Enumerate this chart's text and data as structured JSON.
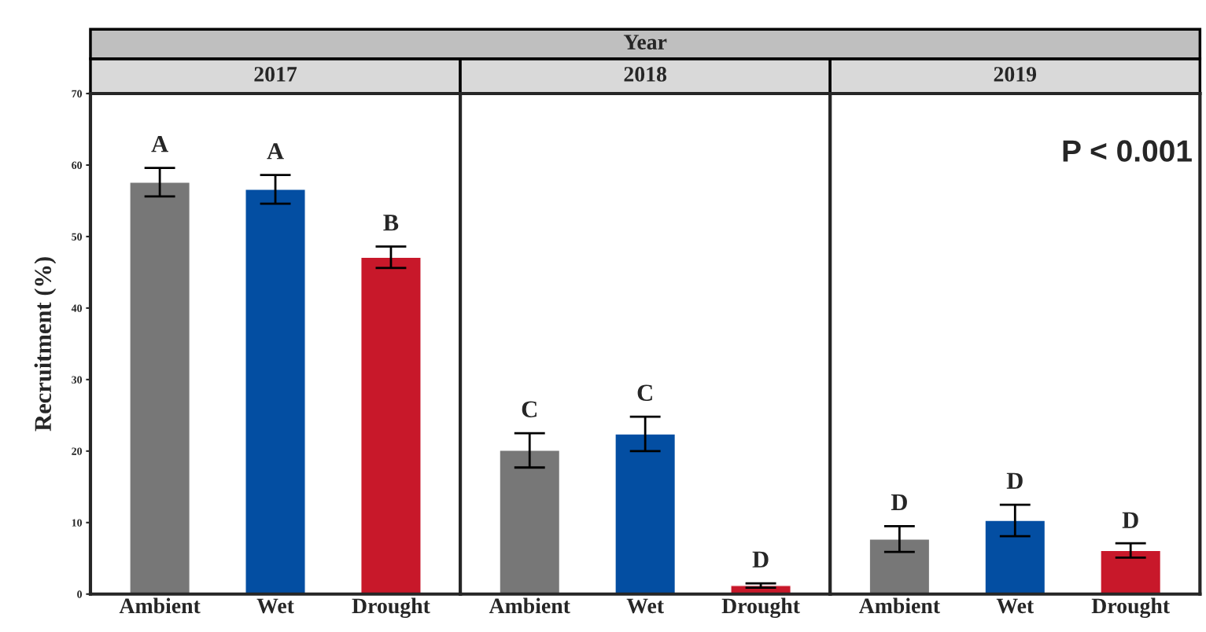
{
  "chart_data": [
    {
      "type": "bar",
      "title": "2017",
      "ylabel": "Recruitment (%)",
      "categories": [
        "Ambient",
        "Wet",
        "Drought"
      ],
      "values": [
        57.6,
        56.6,
        47.1
      ],
      "errors": [
        2.0,
        2.0,
        1.5
      ],
      "colors": [
        "#777777",
        "#034ea2",
        "#c8182a"
      ],
      "ylim": [
        0,
        70
      ],
      "yticks": [
        0,
        10,
        20,
        30,
        40,
        50,
        60,
        70
      ],
      "grid": false,
      "annotations": [
        "Year",
        {
          "text": "A",
          "x": "Ambient",
          "y": 59.6
        },
        {
          "text": "A",
          "x": "Wet",
          "y": 58.6
        },
        {
          "text": "B",
          "x": "Drought",
          "y": 48.6
        }
      ]
    },
    {
      "type": "bar",
      "title": "2018",
      "categories": [
        "Ambient",
        "Wet",
        "Drought"
      ],
      "values": [
        20.1,
        22.4,
        1.2
      ],
      "errors": [
        2.4,
        2.4,
        0.3
      ],
      "colors": [
        "#777777",
        "#034ea2",
        "#c8182a"
      ],
      "ylim": [
        0,
        70
      ],
      "grid": false,
      "tick_labels": "x",
      "annotations": [
        {
          "text": "C",
          "x": "Ambient",
          "y": 22.5
        },
        {
          "text": "C",
          "x": "Wet",
          "y": 24.8
        },
        {
          "text": "D",
          "x": "Drought",
          "y": 1.5
        }
      ]
    },
    {
      "type": "bar",
      "title": "2019",
      "categories": [
        "Ambient",
        "Wet",
        "Drought"
      ],
      "values": [
        7.7,
        10.3,
        6.1
      ],
      "errors": [
        1.8,
        2.2,
        1.0
      ],
      "colors": [
        "#777777",
        "#034ea2",
        "#c8182a"
      ],
      "ylim": [
        0,
        70
      ],
      "grid": false,
      "tick_labels": "x",
      "annotations": [
        "P < 0.001",
        {
          "text": "D",
          "x": "Ambient",
          "y": 9.5
        },
        {
          "text": "D",
          "x": "Wet",
          "y": 12.5
        },
        {
          "text": "D",
          "x": "Drought",
          "y": 7.0
        }
      ]
    }
  ]
}
